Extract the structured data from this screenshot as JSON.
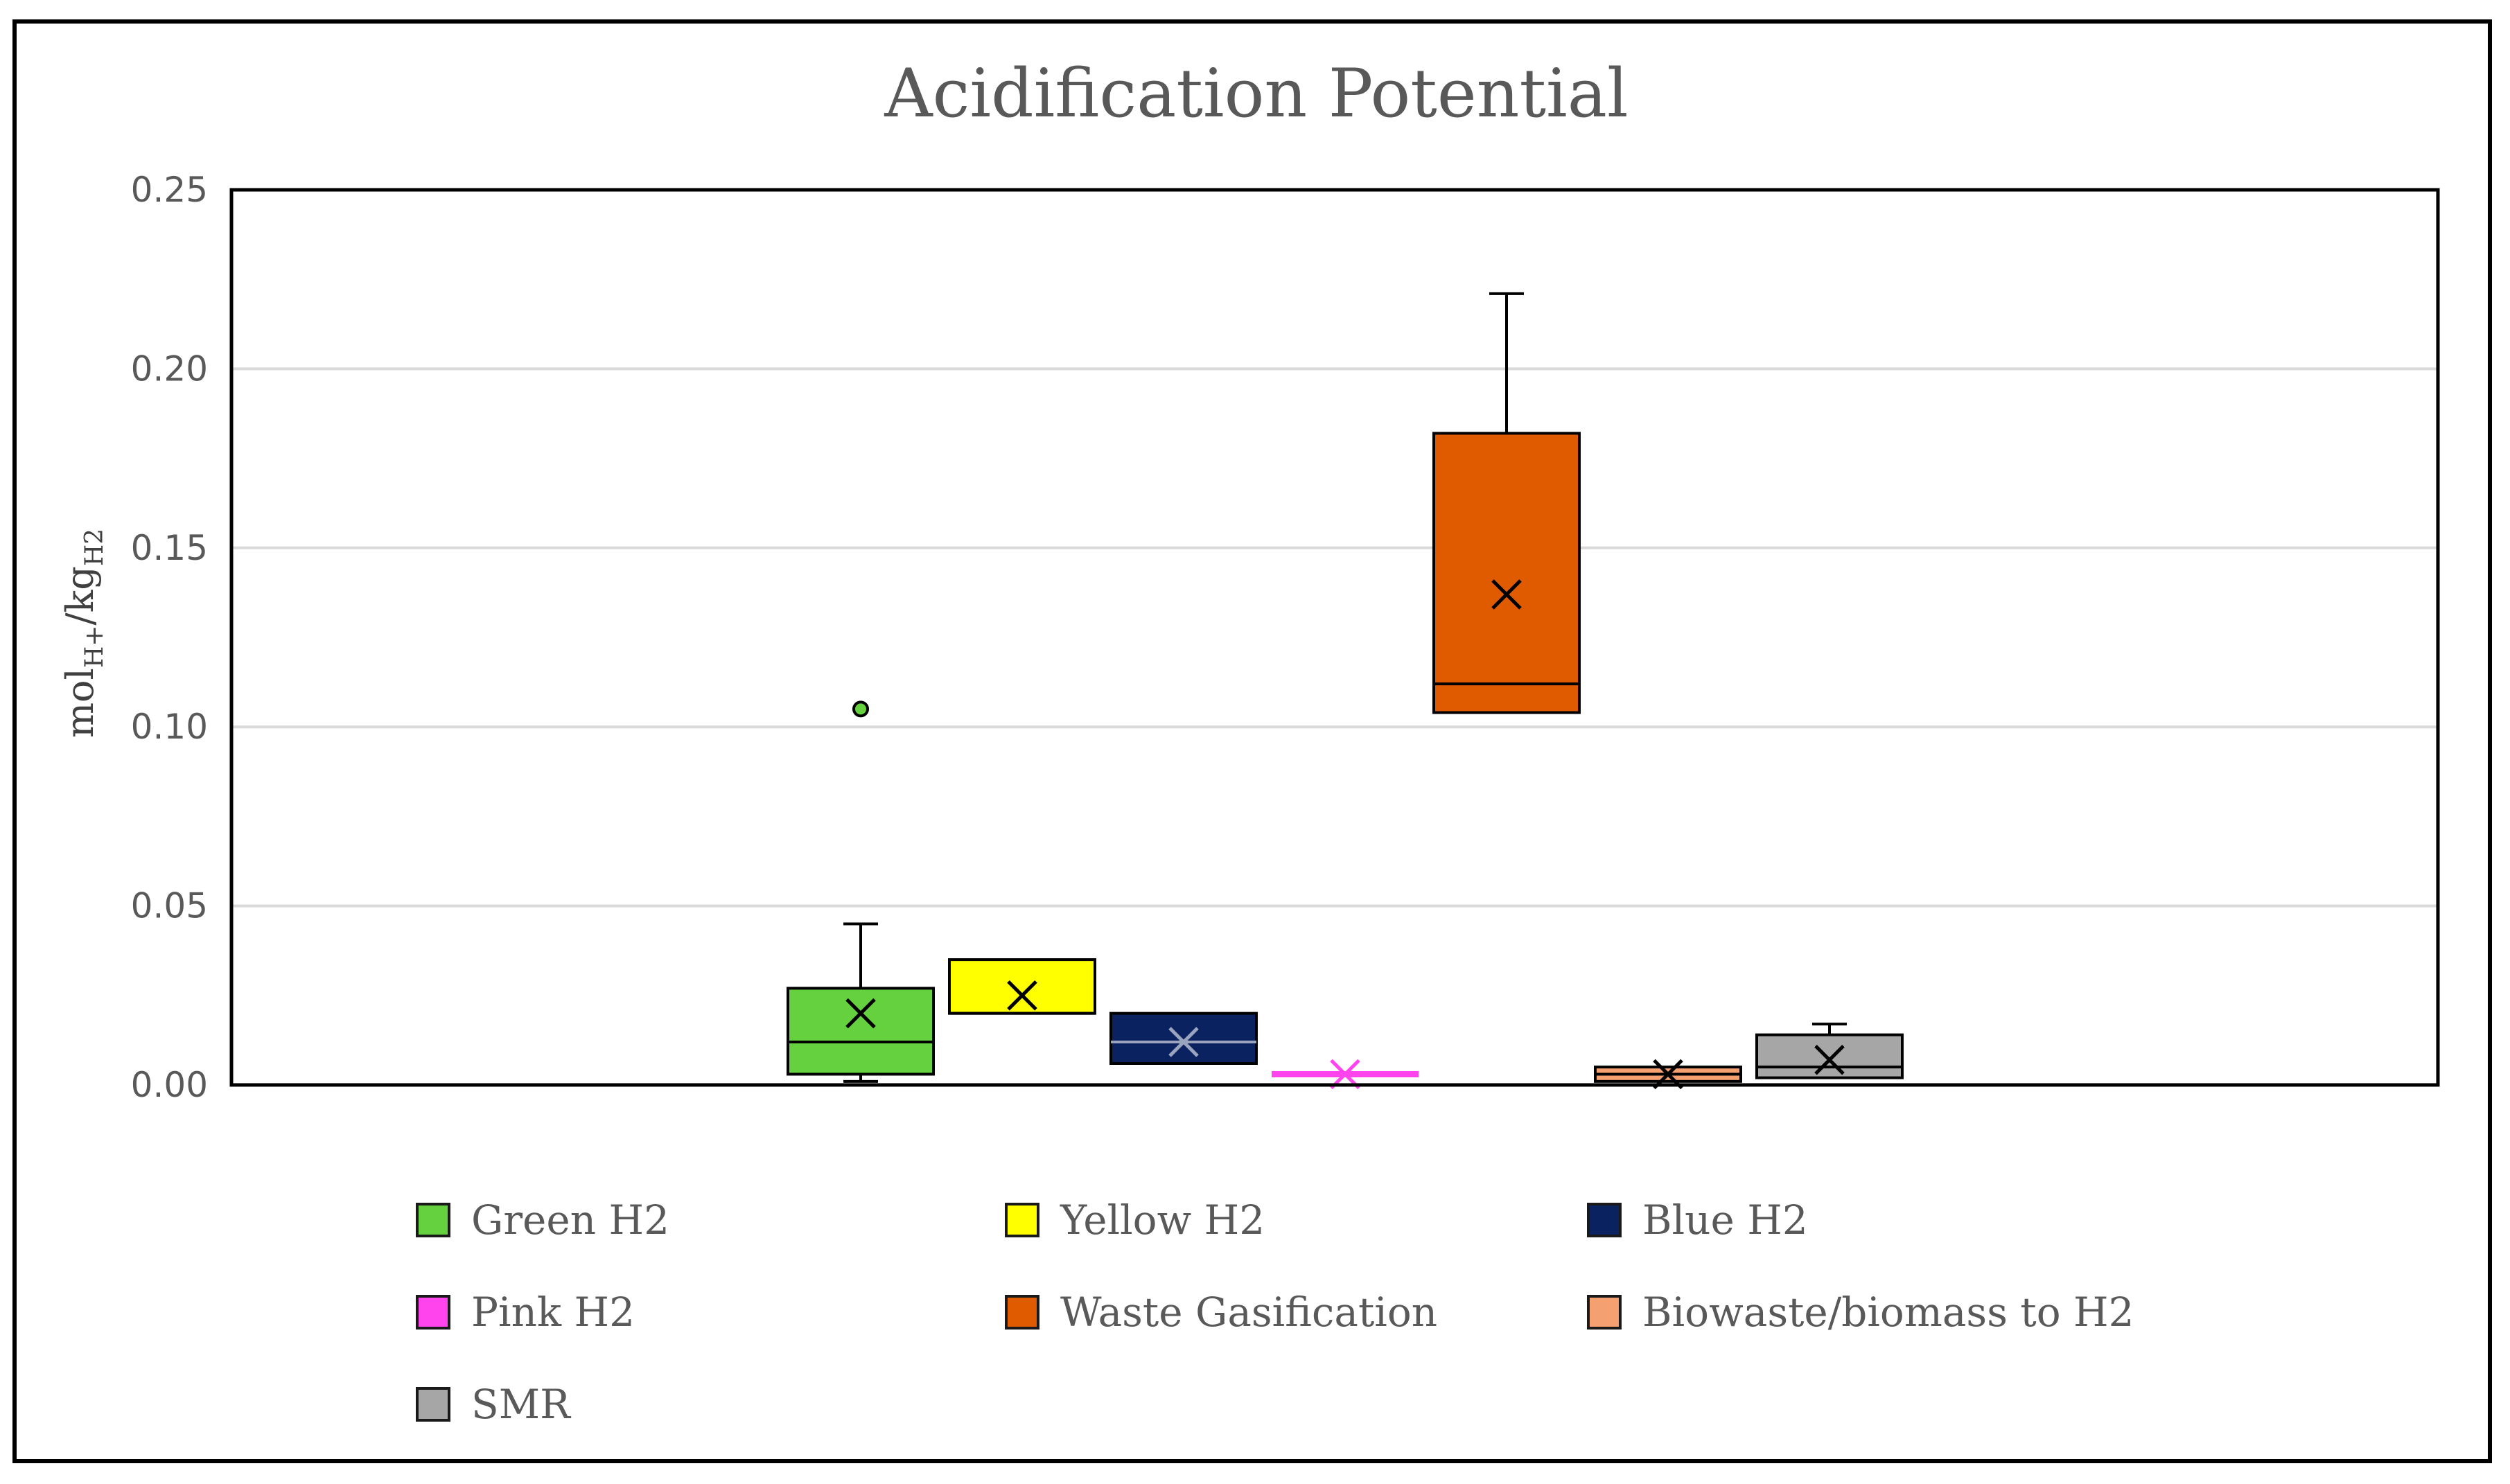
{
  "chart_data": {
    "type": "box",
    "title": "Acidification Potential",
    "ylabel": {
      "main": "mol",
      "sub1": "H+",
      "mid": "/kg",
      "sub2": "H2"
    },
    "xlabel": "",
    "ylim": [
      0,
      0.25
    ],
    "yticks": [
      "0.00",
      "0.05",
      "0.10",
      "0.15",
      "0.20",
      "0.25"
    ],
    "ytick_values": [
      0,
      0.05,
      0.1,
      0.15,
      0.2,
      0.25
    ],
    "grid": true,
    "legend_position": "bottom",
    "series": [
      {
        "name": "Green H2",
        "color": "#66d13f",
        "whisker_low": 0.001,
        "q1": 0.003,
        "median": 0.012,
        "q3": 0.027,
        "whisker_high": 0.045,
        "mean": 0.02,
        "outliers": [
          0.105
        ]
      },
      {
        "name": "Yellow H2",
        "color": "#ffff00",
        "whisker_low": 0.02,
        "q1": 0.02,
        "median": 0.02,
        "q3": 0.035,
        "whisker_high": 0.035,
        "mean": 0.025,
        "outliers": []
      },
      {
        "name": "Blue H2",
        "color": "#0a2260",
        "whisker_low": 0.006,
        "q1": 0.006,
        "median": 0.012,
        "q3": 0.02,
        "whisker_high": 0.02,
        "mean": 0.012,
        "outliers": []
      },
      {
        "name": "Pink H2",
        "color": "#ff44ee",
        "whisker_low": 0.003,
        "q1": 0.003,
        "median": 0.003,
        "q3": 0.003,
        "whisker_high": 0.003,
        "mean": 0.003,
        "outliers": []
      },
      {
        "name": "Waste Gasification",
        "color": "#e05a00",
        "whisker_low": 0.104,
        "q1": 0.104,
        "median": 0.112,
        "q3": 0.182,
        "whisker_high": 0.221,
        "mean": 0.137,
        "outliers": []
      },
      {
        "name": "Biowaste/biomass to H2",
        "color": "#f5a070",
        "whisker_low": 0.001,
        "q1": 0.001,
        "median": 0.003,
        "q3": 0.005,
        "whisker_high": 0.005,
        "mean": 0.003,
        "outliers": []
      },
      {
        "name": "SMR",
        "color": "#a6a6a6",
        "whisker_low": 0.002,
        "q1": 0.002,
        "median": 0.005,
        "q3": 0.014,
        "whisker_high": 0.017,
        "mean": 0.007,
        "outliers": []
      }
    ]
  }
}
